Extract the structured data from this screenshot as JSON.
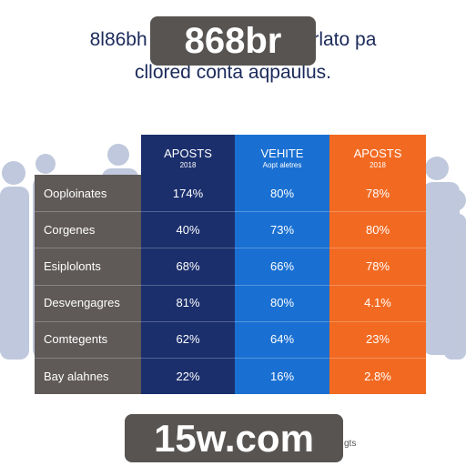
{
  "header": {
    "title_left": "8l86bh",
    "title_right": "rlato pa",
    "subtitle": "cllored conta aqpaulus."
  },
  "table": {
    "columns": [
      {
        "title": "APOSTS",
        "subtitle": "2018"
      },
      {
        "title": "VEHITE",
        "subtitle": "Aopt aletres"
      },
      {
        "title": "APOSTS",
        "subtitle": "2018"
      }
    ],
    "rows": [
      [
        "Ooploinates",
        "174%",
        "80%",
        "78%"
      ],
      [
        "Corgenes",
        "40%",
        "73%",
        "80%"
      ],
      [
        "Esiplolonts",
        "68%",
        "66%",
        "78%"
      ],
      [
        "Desvengagres",
        "81%",
        "80%",
        "4.1%"
      ],
      [
        "Comtegents",
        "62%",
        "64%",
        "23%"
      ],
      [
        "Bay alahnes",
        "22%",
        "16%",
        "2.8%"
      ]
    ]
  },
  "watermarks": {
    "top": "868br",
    "bottom": "15w.com"
  },
  "footnote": "gts"
}
